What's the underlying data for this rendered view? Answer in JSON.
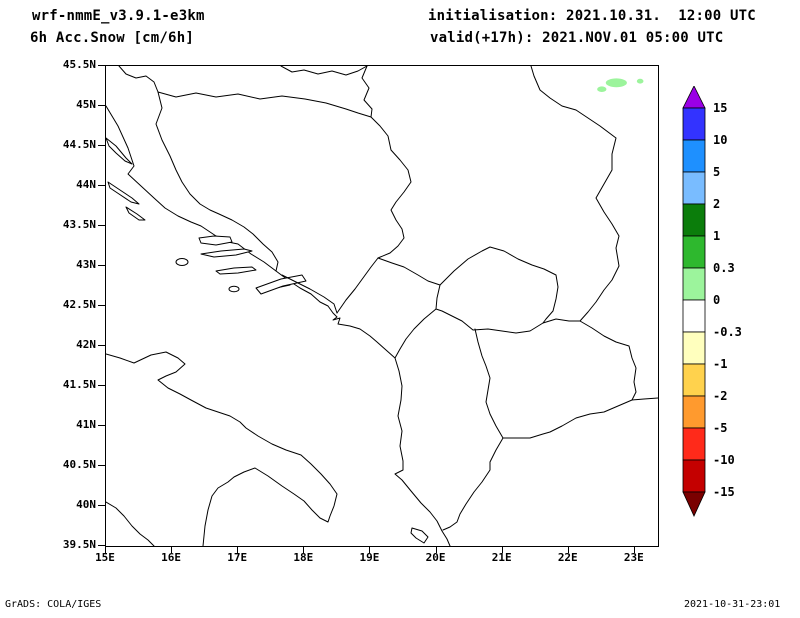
{
  "header": {
    "model_title": "wrf-nmmE_v3.9.1-e3km",
    "field_title": "6h Acc.Snow [cm/6h]",
    "init_line": "initialisation: 2021.10.31.  12:00 UTC",
    "valid_line": "valid(+17h): 2021.NOV.01 05:00 UTC"
  },
  "footer": {
    "credit": "GrADS: COLA/IGES",
    "timestamp": "2021-10-31-23:01"
  },
  "chart_data": {
    "type": "heatmap",
    "title": "6h Acc.Snow [cm/6h]",
    "subtitle": "wrf-nmmE_v3.9.1-e3km, init 2021.10.31 12:00 UTC, valid(+17h) 2021.NOV.01 05:00 UTC",
    "projection": "lat-lon map of the Adriatic / Balkans region",
    "grid": "off",
    "x_axis": {
      "ticks": [
        "15E",
        "16E",
        "17E",
        "18E",
        "19E",
        "20E",
        "21E",
        "22E",
        "23E"
      ],
      "range_deg_e": [
        15,
        23.35
      ]
    },
    "y_axis": {
      "ticks": [
        "45.5N",
        "45N",
        "44.5N",
        "44N",
        "43.5N",
        "43N",
        "42.5N",
        "42N",
        "41.5N",
        "41N",
        "40.5N",
        "40N",
        "39.5N"
      ],
      "range_deg_n": [
        39.5,
        45.5
      ]
    },
    "colorbar": {
      "position": "right",
      "units": "cm/6h",
      "levels": [
        15,
        10,
        5,
        2,
        1,
        0.3,
        0,
        -0.3,
        -1,
        -2,
        -5,
        -10,
        -15
      ],
      "colors_top_to_bottom": [
        "#9a00e6",
        "#3333ff",
        "#1e90ff",
        "#79bcff",
        "#0b7d0b",
        "#2eb82e",
        "#9cf49c",
        "#ffffff",
        "#ffffbe",
        "#ffd24d",
        "#ff9a2e",
        "#ff2a1a",
        "#c40000",
        "#7a0000"
      ]
    },
    "shaded_regions": [
      {
        "lon": 22.72,
        "lat": 45.29,
        "rx_deg": 0.16,
        "ry_deg": 0.055,
        "level": "0.3 to 1 cm",
        "color": "#9cf49c"
      },
      {
        "lon": 22.5,
        "lat": 45.21,
        "rx_deg": 0.07,
        "ry_deg": 0.035,
        "level": "0.3 to 1 cm",
        "color": "#9cf49c"
      },
      {
        "lon": 23.08,
        "lat": 45.31,
        "rx_deg": 0.05,
        "ry_deg": 0.03,
        "level": "0.3 to 1 cm",
        "color": "#9cf49c"
      }
    ]
  }
}
